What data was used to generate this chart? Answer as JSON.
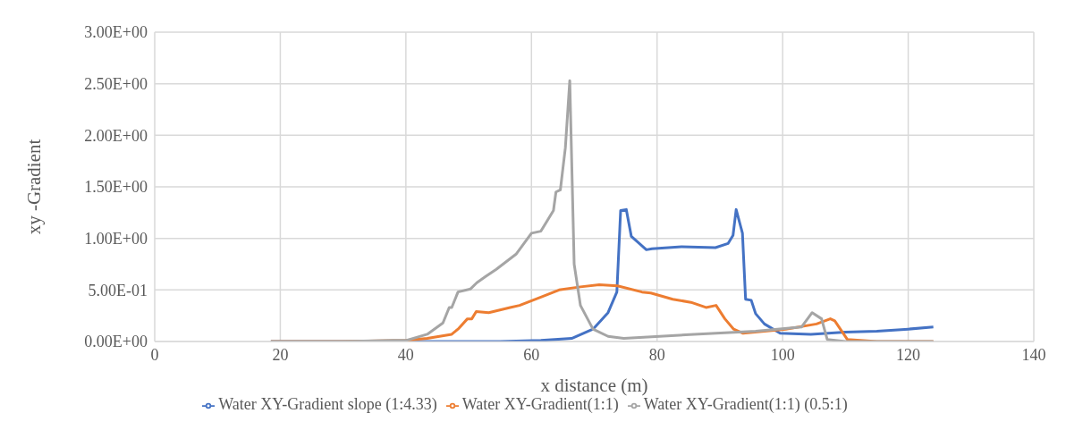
{
  "chart_data": {
    "type": "line",
    "xlabel": "x distance (m)",
    "ylabel": "xy -Gradient",
    "xlim": [
      0,
      140
    ],
    "xticks": [
      0,
      20,
      40,
      60,
      80,
      100,
      120,
      140
    ],
    "ylim": [
      0,
      3
    ],
    "yticks": [
      {
        "value": 0,
        "label": "0.00E+00"
      },
      {
        "value": 0.5,
        "label": "5.00E-01"
      },
      {
        "value": 1,
        "label": "1.00E+00"
      },
      {
        "value": 1.5,
        "label": "1.50E+00"
      },
      {
        "value": 2,
        "label": "2.00E+00"
      },
      {
        "value": 2.5,
        "label": "2.50E+00"
      },
      {
        "value": 3,
        "label": "3.00E+00"
      }
    ],
    "grid": true,
    "legend": "bottom",
    "marker": "none",
    "line_style": "solid",
    "series": [
      {
        "name": "Water XY-Gradient slope (1:4.33)",
        "color": "#4472c4",
        "x": [
          18.5,
          30,
          40,
          50,
          55,
          61.5,
          66.4,
          69.8,
          72.2,
          73.6,
          74.2,
          75.1,
          75.9,
          78.3,
          79.2,
          83.9,
          89.3,
          91.3,
          92.1,
          92.6,
          93.6,
          94.1,
          95.0,
          95.7,
          97.1,
          99.6,
          104.5,
          110,
          115,
          120,
          124
        ],
        "values": [
          0,
          0,
          0,
          0,
          0,
          0.01,
          0.03,
          0.12,
          0.28,
          0.48,
          1.27,
          1.28,
          1.02,
          0.89,
          0.9,
          0.92,
          0.91,
          0.95,
          1.03,
          1.28,
          1.05,
          0.41,
          0.4,
          0.27,
          0.17,
          0.08,
          0.07,
          0.09,
          0.1,
          0.12,
          0.14
        ]
      },
      {
        "name": "Water XY-Gradient(1:1)",
        "color": "#ed7d31",
        "x": [
          18.5,
          30,
          40,
          43.4,
          47.3,
          48.3,
          49.8,
          50.5,
          51.2,
          53.2,
          56.6,
          58.1,
          61.5,
          64.4,
          67.8,
          70.8,
          73.7,
          77.6,
          79.0,
          82.5,
          85.4,
          87.8,
          89.4,
          90.8,
          92.2,
          93.7,
          100.5,
          105.4,
          107.6,
          108.3,
          110.3,
          115,
          124
        ],
        "values": [
          0,
          0,
          0.01,
          0.03,
          0.07,
          0.12,
          0.22,
          0.22,
          0.29,
          0.28,
          0.33,
          0.35,
          0.43,
          0.5,
          0.53,
          0.55,
          0.54,
          0.48,
          0.47,
          0.41,
          0.38,
          0.33,
          0.35,
          0.22,
          0.12,
          0.08,
          0.12,
          0.17,
          0.22,
          0.2,
          0.02,
          0,
          0
        ]
      },
      {
        "name": "Water XY-Gradient(1:1) (0.5:1)",
        "color": "#a5a5a5",
        "x": [
          18.5,
          30,
          38,
          40,
          43.4,
          45.9,
          46.9,
          47.3,
          48.3,
          50.3,
          51.3,
          52.7,
          54.4,
          57.6,
          60.0,
          61.5,
          63.5,
          63.9,
          64.6,
          65.4,
          66.1,
          66.8,
          67.8,
          69.8,
          72.2,
          74.7,
          85.9,
          95.7,
          103,
          104.7,
          106.2,
          107.1,
          110,
          124
        ],
        "values": [
          0,
          0,
          0.01,
          0.01,
          0.07,
          0.18,
          0.33,
          0.33,
          0.48,
          0.51,
          0.57,
          0.63,
          0.7,
          0.85,
          1.05,
          1.07,
          1.27,
          1.45,
          1.47,
          1.88,
          2.53,
          0.75,
          0.35,
          0.12,
          0.05,
          0.03,
          0.07,
          0.1,
          0.14,
          0.28,
          0.22,
          0.02,
          0,
          0
        ]
      }
    ]
  }
}
